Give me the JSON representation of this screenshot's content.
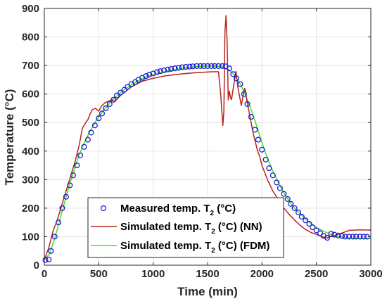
{
  "chart_data": {
    "type": "line",
    "title": "",
    "xlabel": "Time (min)",
    "ylabel": "Temperature (°C)",
    "xlim": [
      0,
      3000
    ],
    "ylim": [
      0,
      900
    ],
    "xticks": [
      0,
      500,
      1000,
      1500,
      2000,
      2500,
      3000
    ],
    "yticks": [
      0,
      100,
      200,
      300,
      400,
      500,
      600,
      700,
      800,
      900
    ],
    "grid": true,
    "legend": {
      "position": "bottom-left",
      "subscript": "2"
    },
    "series": [
      {
        "name": "Measured temp. T2 (°C)",
        "legend_main": "Measured temp. T",
        "legend_tail": " (°C)",
        "style": "markers",
        "marker": "circle",
        "color": "#1f1fd6",
        "x": [
          10,
          40,
          60,
          95,
          130,
          165,
          200,
          235,
          265,
          300,
          330,
          365,
          400,
          430,
          465,
          500,
          530,
          565,
          600,
          635,
          665,
          700,
          735,
          765,
          800,
          835,
          865,
          900,
          935,
          965,
          1000,
          1035,
          1065,
          1100,
          1135,
          1165,
          1200,
          1235,
          1265,
          1300,
          1335,
          1365,
          1400,
          1435,
          1465,
          1500,
          1535,
          1565,
          1600,
          1635,
          1665,
          1700,
          1735,
          1765,
          1800,
          1835,
          1865,
          1900,
          1935,
          1965,
          2000,
          2035,
          2065,
          2100,
          2135,
          2165,
          2200,
          2235,
          2265,
          2300,
          2335,
          2365,
          2400,
          2435,
          2465,
          2500,
          2535,
          2565,
          2600,
          2635,
          2665,
          2700,
          2735,
          2765,
          2800,
          2835,
          2865,
          2900,
          2935,
          2965
        ],
        "y": [
          18,
          20,
          50,
          100,
          150,
          200,
          240,
          280,
          315,
          350,
          385,
          415,
          440,
          465,
          490,
          515,
          532,
          550,
          565,
          580,
          595,
          605,
          615,
          625,
          635,
          642,
          650,
          657,
          663,
          668,
          672,
          677,
          680,
          683,
          686,
          688,
          690,
          692,
          694,
          695,
          696,
          697,
          698,
          698,
          698,
          698,
          698,
          698,
          698,
          698,
          697,
          690,
          670,
          655,
          635,
          600,
          565,
          520,
          475,
          440,
          405,
          370,
          340,
          315,
          290,
          270,
          250,
          232,
          215,
          200,
          185,
          170,
          157,
          145,
          133,
          122,
          112,
          103,
          96,
          110,
          107,
          104,
          102,
          100,
          100,
          100,
          100,
          100,
          100,
          100
        ]
      },
      {
        "name": "Simulated temp. T2 (°C) (NN)",
        "legend_main": "Simulated temp. T",
        "legend_tail": " (°C) (NN)",
        "style": "line",
        "color": "#b5261c",
        "x": [
          0,
          40,
          80,
          120,
          160,
          200,
          240,
          280,
          320,
          350,
          380,
          400,
          420,
          440,
          470,
          500,
          530,
          560,
          590,
          620,
          650,
          700,
          800,
          900,
          1000,
          1100,
          1200,
          1300,
          1400,
          1500,
          1550,
          1580,
          1600,
          1620,
          1640,
          1650,
          1660,
          1670,
          1680,
          1690,
          1700,
          1710,
          1720,
          1740,
          1760,
          1780,
          1800,
          1810,
          1820,
          1830,
          1840,
          1850,
          1860,
          1870,
          1880,
          1890,
          1900,
          1920,
          1940,
          1960,
          1980,
          2000,
          2050,
          2100,
          2150,
          2200,
          2250,
          2300,
          2350,
          2400,
          2450,
          2500,
          2550,
          2600,
          2620,
          2650,
          2700,
          2750,
          2800,
          2900,
          3000
        ],
        "y": [
          20,
          60,
          120,
          160,
          210,
          260,
          310,
          360,
          420,
          480,
          500,
          510,
          530,
          545,
          550,
          540,
          560,
          570,
          575,
          580,
          575,
          595,
          625,
          645,
          655,
          663,
          668,
          672,
          675,
          677,
          678,
          678,
          678,
          600,
          490,
          540,
          820,
          875,
          780,
          580,
          610,
          590,
          580,
          630,
          680,
          620,
          580,
          560,
          580,
          600,
          620,
          610,
          580,
          560,
          540,
          520,
          500,
          460,
          430,
          400,
          380,
          350,
          300,
          260,
          230,
          200,
          178,
          158,
          140,
          125,
          115,
          108,
          100,
          95,
          100,
          100,
          108,
          115,
          122,
          124,
          123
        ]
      },
      {
        "name": "Simulated temp. T2 (°C) (FDM)",
        "legend_main": "Simulated temp. T",
        "legend_tail": " (°C) (FDM)",
        "style": "line",
        "color": "#39e61a",
        "x": [
          0,
          50,
          100,
          150,
          200,
          250,
          300,
          350,
          400,
          450,
          500,
          550,
          600,
          650,
          700,
          750,
          800,
          850,
          900,
          950,
          1000,
          1050,
          1100,
          1150,
          1200,
          1250,
          1300,
          1350,
          1400,
          1450,
          1500,
          1550,
          1600,
          1650,
          1700,
          1750,
          1800,
          1850,
          1900,
          1950,
          2000,
          2050,
          2100,
          2150,
          2200,
          2250,
          2300,
          2350,
          2400,
          2450,
          2500,
          2550,
          2600,
          2650,
          2700,
          2750,
          2800,
          2850,
          2900,
          2950,
          3000
        ],
        "y": [
          20,
          40,
          100,
          170,
          240,
          305,
          365,
          415,
          455,
          490,
          520,
          545,
          568,
          588,
          605,
          620,
          633,
          644,
          654,
          662,
          668,
          673,
          678,
          682,
          686,
          689,
          692,
          694,
          696,
          697,
          698,
          698,
          697,
          693,
          684,
          665,
          635,
          595,
          545,
          490,
          430,
          375,
          330,
          290,
          255,
          225,
          200,
          180,
          162,
          146,
          133,
          122,
          113,
          106,
          101,
          98,
          96,
          95,
          95,
          94,
          94
        ]
      }
    ]
  }
}
